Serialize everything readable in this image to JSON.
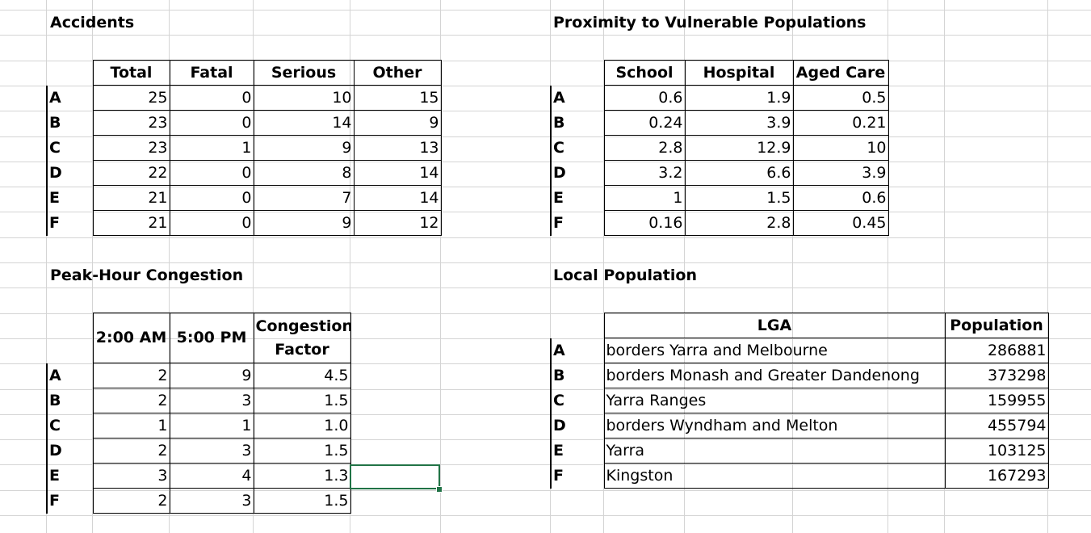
{
  "accidents": {
    "title": "Accidents",
    "headers": [
      "Total",
      "Fatal",
      "Serious",
      "Other"
    ],
    "rows": [
      {
        "label": "A",
        "values": [
          "25",
          "0",
          "10",
          "15"
        ]
      },
      {
        "label": "B",
        "values": [
          "23",
          "0",
          "14",
          "9"
        ]
      },
      {
        "label": "C",
        "values": [
          "23",
          "1",
          "9",
          "13"
        ]
      },
      {
        "label": "D",
        "values": [
          "22",
          "0",
          "8",
          "14"
        ]
      },
      {
        "label": "E",
        "values": [
          "21",
          "0",
          "7",
          "14"
        ]
      },
      {
        "label": "F",
        "values": [
          "21",
          "0",
          "9",
          "12"
        ]
      }
    ]
  },
  "proximity": {
    "title": "Proximity to Vulnerable Populations",
    "headers": [
      "School",
      "Hospital",
      "Aged Care"
    ],
    "rows": [
      {
        "label": "A",
        "values": [
          "0.6",
          "1.9",
          "0.5"
        ]
      },
      {
        "label": "B",
        "values": [
          "0.24",
          "3.9",
          "0.21"
        ]
      },
      {
        "label": "C",
        "values": [
          "2.8",
          "12.9",
          "10"
        ]
      },
      {
        "label": "D",
        "values": [
          "3.2",
          "6.6",
          "3.9"
        ]
      },
      {
        "label": "E",
        "values": [
          "1",
          "1.5",
          "0.6"
        ]
      },
      {
        "label": "F",
        "values": [
          "0.16",
          "2.8",
          "0.45"
        ]
      }
    ]
  },
  "congestion": {
    "title": "Peak-Hour Congestion",
    "headers": [
      "2:00 AM",
      "5:00 PM",
      "Congestion",
      "Factor"
    ],
    "rows": [
      {
        "label": "A",
        "values": [
          "2",
          "9",
          "4.5"
        ]
      },
      {
        "label": "B",
        "values": [
          "2",
          "3",
          "1.5"
        ]
      },
      {
        "label": "C",
        "values": [
          "1",
          "1",
          "1.0"
        ]
      },
      {
        "label": "D",
        "values": [
          "2",
          "3",
          "1.5"
        ]
      },
      {
        "label": "E",
        "values": [
          "3",
          "4",
          "1.3"
        ]
      },
      {
        "label": "F",
        "values": [
          "2",
          "3",
          "1.5"
        ]
      }
    ]
  },
  "population": {
    "title": "Local Population",
    "headers": [
      "LGA",
      "Population"
    ],
    "rows": [
      {
        "label": "A",
        "lga": "borders Yarra and Melbourne",
        "population": "286881"
      },
      {
        "label": "B",
        "lga": "borders Monash and Greater Dandenong",
        "population": "373298"
      },
      {
        "label": "C",
        "lga": "Yarra Ranges",
        "population": "159955"
      },
      {
        "label": "D",
        "lga": "borders Wyndham and Melton",
        "population": "455794"
      },
      {
        "label": "E",
        "lga": "Yarra",
        "population": "103125"
      },
      {
        "label": "F",
        "lga": "Kingston",
        "population": "167293"
      }
    ]
  },
  "colors": {
    "gridline": "#d4d4d4",
    "selection": "#217346"
  }
}
